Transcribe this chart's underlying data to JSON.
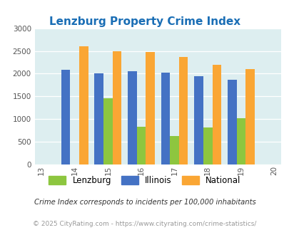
{
  "title": "Lenzburg Property Crime Index",
  "all_years": [
    2013,
    2014,
    2015,
    2016,
    2017,
    2018,
    2019,
    2020
  ],
  "all_years_labels": [
    "13",
    "14",
    "15",
    "16",
    "17",
    "18",
    "19",
    "20"
  ],
  "data_years": [
    2014,
    2015,
    2016,
    2017,
    2018,
    2019
  ],
  "lenzburg": [
    0,
    1450,
    830,
    630,
    810,
    1020
  ],
  "illinois": [
    2090,
    2000,
    2050,
    2020,
    1950,
    1860
  ],
  "national": [
    2600,
    2500,
    2470,
    2370,
    2200,
    2100
  ],
  "bar_color_lenzburg": "#8dc63f",
  "bar_color_illinois": "#4472c4",
  "bar_color_national": "#faa634",
  "bg_color": "#ddeef0",
  "fig_bg": "#ffffff",
  "ylabel_max": 3000,
  "yticks": [
    0,
    500,
    1000,
    1500,
    2000,
    2500,
    3000
  ],
  "footnote1": "Crime Index corresponds to incidents per 100,000 inhabitants",
  "footnote2": "© 2025 CityRating.com - https://www.cityrating.com/crime-statistics/",
  "title_color": "#1a6eb5",
  "footnote1_color": "#333333",
  "footnote2_color": "#999999"
}
